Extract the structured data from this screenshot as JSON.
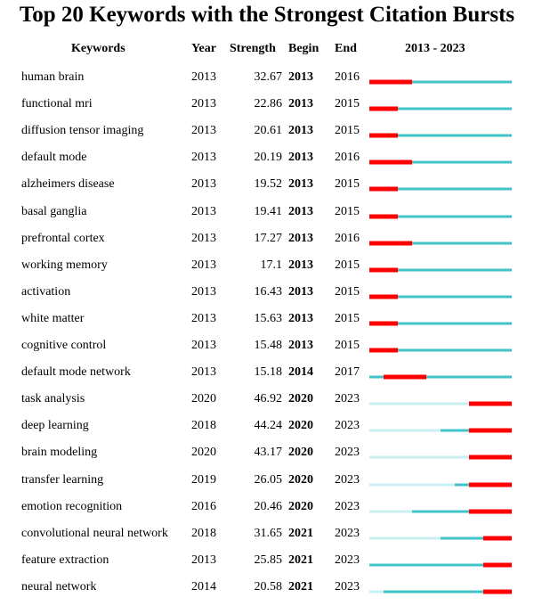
{
  "title": "Top 20 Keywords with the Strongest Citation Bursts",
  "headers": {
    "keyword": "Keywords",
    "year": "Year",
    "strength": "Strength",
    "begin": "Begin",
    "end": "End",
    "range": "2013 - 2023"
  },
  "chart_data": {
    "type": "table",
    "title": "Top 20 Keywords with the Strongest Citation Bursts",
    "timeline": {
      "start": 2013,
      "end": 2023
    },
    "colors": {
      "burst": "#ff0000",
      "active": "#40c4c8",
      "inactive": "#c8eef0"
    },
    "rows": [
      {
        "keyword": "human brain",
        "year": "2013",
        "strength": "32.67",
        "begin": "2013",
        "end": "2016"
      },
      {
        "keyword": "functional mri",
        "year": "2013",
        "strength": "22.86",
        "begin": "2013",
        "end": "2015"
      },
      {
        "keyword": "diffusion tensor imaging",
        "year": "2013",
        "strength": "20.61",
        "begin": "2013",
        "end": "2015"
      },
      {
        "keyword": "default mode",
        "year": "2013",
        "strength": "20.19",
        "begin": "2013",
        "end": "2016"
      },
      {
        "keyword": "alzheimers disease",
        "year": "2013",
        "strength": "19.52",
        "begin": "2013",
        "end": "2015"
      },
      {
        "keyword": "basal ganglia",
        "year": "2013",
        "strength": "19.41",
        "begin": "2013",
        "end": "2015"
      },
      {
        "keyword": "prefrontal cortex",
        "year": "2013",
        "strength": "17.27",
        "begin": "2013",
        "end": "2016"
      },
      {
        "keyword": "working memory",
        "year": "2013",
        "strength": "17.1",
        "begin": "2013",
        "end": "2015"
      },
      {
        "keyword": "activation",
        "year": "2013",
        "strength": "16.43",
        "begin": "2013",
        "end": "2015"
      },
      {
        "keyword": "white matter",
        "year": "2013",
        "strength": "15.63",
        "begin": "2013",
        "end": "2015"
      },
      {
        "keyword": "cognitive control",
        "year": "2013",
        "strength": "15.48",
        "begin": "2013",
        "end": "2015"
      },
      {
        "keyword": "default mode network",
        "year": "2013",
        "strength": "15.18",
        "begin": "2014",
        "end": "2017"
      },
      {
        "keyword": "task analysis",
        "year": "2020",
        "strength": "46.92",
        "begin": "2020",
        "end": "2023"
      },
      {
        "keyword": "deep learning",
        "year": "2018",
        "strength": "44.24",
        "begin": "2020",
        "end": "2023"
      },
      {
        "keyword": "brain modeling",
        "year": "2020",
        "strength": "43.17",
        "begin": "2020",
        "end": "2023"
      },
      {
        "keyword": "transfer learning",
        "year": "2019",
        "strength": "26.05",
        "begin": "2020",
        "end": "2023"
      },
      {
        "keyword": "emotion recognition",
        "year": "2016",
        "strength": "20.46",
        "begin": "2020",
        "end": "2023"
      },
      {
        "keyword": "convolutional neural network",
        "year": "2018",
        "strength": "31.65",
        "begin": "2021",
        "end": "2023"
      },
      {
        "keyword": "feature extraction",
        "year": "2013",
        "strength": "25.85",
        "begin": "2021",
        "end": "2023"
      },
      {
        "keyword": "neural network",
        "year": "2014",
        "strength": "20.58",
        "begin": "2021",
        "end": "2023"
      }
    ]
  }
}
